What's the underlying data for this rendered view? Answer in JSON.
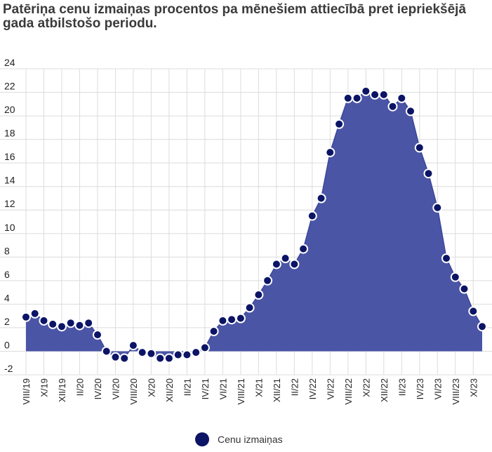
{
  "chart_data": {
    "type": "area",
    "title_lines": [
      "Patēriņa cenu izmaiņas procentos pa mēnešiem attiecībā pret iepriekšējā",
      "gada atbilstošo periodu."
    ],
    "y_ticks": [
      "24",
      "22",
      "20",
      "18",
      "16",
      "14",
      "12",
      "10",
      "8",
      "6",
      "4",
      "2",
      "0",
      "-2"
    ],
    "ylim": [
      -2,
      24
    ],
    "x_tick_labels": [
      "VIII/19",
      "X/19",
      "XII/19",
      "II/20",
      "IV/20",
      "VI/20",
      "VIII/20",
      "X/20",
      "XII/20",
      "II/21",
      "IV/21",
      "VI/21",
      "VIII/21",
      "X/21",
      "XII/21",
      "II/22",
      "IV/22",
      "VI/22",
      "VIII/22",
      "X/22",
      "XII/22",
      "II/23",
      "IV/23",
      "VI/23",
      "VIII/23",
      "X/23"
    ],
    "grid": true,
    "legend_position": "bottom",
    "series": [
      {
        "name": "Cenu izmaiņas",
        "color": "#0c1466",
        "fill": "#4b55a6",
        "values": [
          2.9,
          3.2,
          2.6,
          2.3,
          2.1,
          2.4,
          2.2,
          2.4,
          1.4,
          0.0,
          -0.5,
          -0.6,
          0.5,
          -0.1,
          -0.2,
          -0.6,
          -0.6,
          -0.3,
          -0.3,
          -0.1,
          0.3,
          1.7,
          2.6,
          2.7,
          2.8,
          3.7,
          4.8,
          6.0,
          7.4,
          7.9,
          7.4,
          8.7,
          11.5,
          13.0,
          16.9,
          19.3,
          21.5,
          21.5,
          22.1,
          21.8,
          21.8,
          20.8,
          21.5,
          20.4,
          17.3,
          15.1,
          12.2,
          7.9,
          6.3,
          5.3,
          3.4,
          2.1
        ]
      }
    ]
  },
  "legend": {
    "label": "Cenu izmaiņas"
  }
}
